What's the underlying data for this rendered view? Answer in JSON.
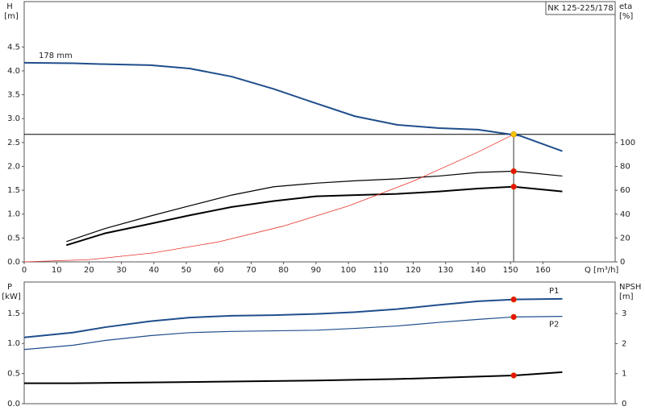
{
  "chart_data": [
    {
      "type": "line",
      "title": "NK 125-225/178",
      "ylabel": "H",
      "yunit": "[m]",
      "y2label": "eta",
      "y2unit": "[%]",
      "xlabel": "Q [m³/h]",
      "xlim": [
        0,
        182.3
      ],
      "xticks": [
        0,
        10,
        20,
        30,
        40,
        50,
        60,
        70,
        80,
        90,
        100,
        110,
        120,
        130,
        140,
        150,
        160
      ],
      "ylim": [
        0,
        5.45
      ],
      "yticks": [
        {
          "value": 0,
          "label": "0.0"
        },
        0.5,
        {
          "value": 1,
          "label": "1.0"
        },
        1.5,
        {
          "value": 2,
          "label": "2.0"
        },
        2.5,
        {
          "value": 3,
          "label": "3.0"
        },
        3.5,
        {
          "value": 4,
          "label": "4.0"
        },
        4.5
      ],
      "y2lim": [
        0,
        218.2
      ],
      "y2ticks": [
        0,
        20,
        40,
        60,
        80,
        100
      ],
      "series": [
        {
          "name": "178 mm",
          "color": "#1f4e8c",
          "width": 2,
          "x": [
            0,
            15,
            25,
            39,
            51,
            64,
            77,
            90,
            102,
            115,
            128,
            140,
            150,
            153,
            166
          ],
          "values": [
            4.17,
            4.16,
            4.14,
            4.12,
            4.05,
            3.88,
            3.62,
            3.32,
            3.05,
            2.87,
            2.8,
            2.77,
            2.67,
            2.64,
            2.32
          ]
        },
        {
          "color": "#000000",
          "width": 1.2,
          "axis": "y2",
          "x": [
            13,
            25,
            39,
            51,
            64,
            77,
            90,
            102,
            115,
            128,
            140,
            151,
            166
          ],
          "values": [
            17,
            28,
            38.5,
            47,
            56,
            63,
            66,
            68,
            69.6,
            72,
            75,
            76,
            72
          ]
        },
        {
          "color": "#000000",
          "width": 2,
          "axis": "y2",
          "x": [
            13,
            25,
            39,
            51,
            64,
            77,
            90,
            102,
            115,
            128,
            140,
            151,
            166
          ],
          "values": [
            14,
            24,
            32,
            39,
            46,
            51,
            55,
            56,
            57,
            59,
            61.5,
            63,
            59
          ]
        },
        {
          "color": "#e8322a",
          "width": 0.8,
          "x": [
            0,
            20,
            40,
            60,
            80,
            100,
            120,
            140,
            151
          ],
          "values": [
            0,
            0.047,
            0.19,
            0.42,
            0.75,
            1.17,
            1.69,
            2.3,
            2.67
          ]
        }
      ],
      "hline": 2.67,
      "vline": 151,
      "points": [
        {
          "x": 151,
          "y": 2.67,
          "color": "#f5c400"
        },
        {
          "x": 151,
          "y": 76,
          "color": "#e8140c",
          "axis": "y2"
        },
        {
          "x": 151,
          "y": 63,
          "color": "#e8140c",
          "axis": "y2"
        }
      ]
    },
    {
      "type": "line",
      "ylabel": "P",
      "yunit": "[kW]",
      "y2label": "NPSH",
      "y2unit": "[m]",
      "xlim": [
        0,
        182.3
      ],
      "ylim": [
        0,
        2.02
      ],
      "yticks": [
        {
          "value": 0,
          "label": "0.0"
        },
        0.5,
        {
          "value": 1,
          "label": "1.0"
        },
        1.5
      ],
      "y2lim": [
        0,
        4.05
      ],
      "y2ticks": [
        0,
        1,
        2,
        3
      ],
      "series": [
        {
          "name": "P1",
          "color": "#1f4e8c",
          "width": 2,
          "x": [
            0,
            15,
            25,
            39,
            51,
            64,
            77,
            90,
            102,
            115,
            128,
            140,
            151,
            166
          ],
          "values": [
            1.1,
            1.18,
            1.27,
            1.37,
            1.43,
            1.46,
            1.47,
            1.49,
            1.52,
            1.57,
            1.64,
            1.7,
            1.73,
            1.74
          ]
        },
        {
          "name": "P2",
          "color": "#1f4e8c",
          "width": 1.2,
          "x": [
            0,
            15,
            25,
            39,
            51,
            64,
            77,
            90,
            102,
            115,
            128,
            140,
            151,
            166
          ],
          "values": [
            0.9,
            0.97,
            1.05,
            1.13,
            1.18,
            1.2,
            1.21,
            1.22,
            1.25,
            1.29,
            1.35,
            1.4,
            1.44,
            1.45
          ]
        },
        {
          "color": "#000000",
          "width": 2,
          "axis": "y2",
          "x": [
            0,
            15,
            51,
            90,
            115,
            151,
            166
          ],
          "values": [
            0.68,
            0.68,
            0.72,
            0.77,
            0.82,
            0.94,
            1.05
          ]
        }
      ],
      "points": [
        {
          "x": 151,
          "y": 1.73,
          "color": "#e8140c"
        },
        {
          "x": 151,
          "y": 1.44,
          "color": "#e8140c"
        },
        {
          "x": 151,
          "y": 0.94,
          "color": "#e8140c",
          "axis": "y2"
        }
      ]
    }
  ]
}
